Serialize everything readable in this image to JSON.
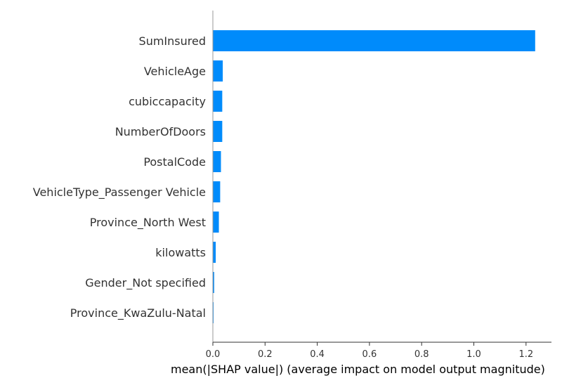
{
  "chart_data": {
    "type": "bar",
    "orientation": "horizontal",
    "categories": [
      "SumInsured",
      "VehicleAge",
      "cubiccapacity",
      "NumberOfDoors",
      "PostalCode",
      "VehicleType_Passenger Vehicle",
      "Province_North West",
      "kilowatts",
      "Gender_Not specified",
      "Province_KwaZulu-Natal"
    ],
    "values": [
      1.235,
      0.038,
      0.036,
      0.036,
      0.031,
      0.028,
      0.023,
      0.011,
      0.005,
      0.002
    ],
    "bar_color": "#008bfb",
    "xlabel": "mean(|SHAP value|) (average impact on model output magnitude)",
    "xlim": [
      0,
      1.3
    ],
    "xticks": [
      "0.0",
      "0.2",
      "0.4",
      "0.6",
      "0.8",
      "1.0",
      "1.2"
    ],
    "grid": false
  }
}
